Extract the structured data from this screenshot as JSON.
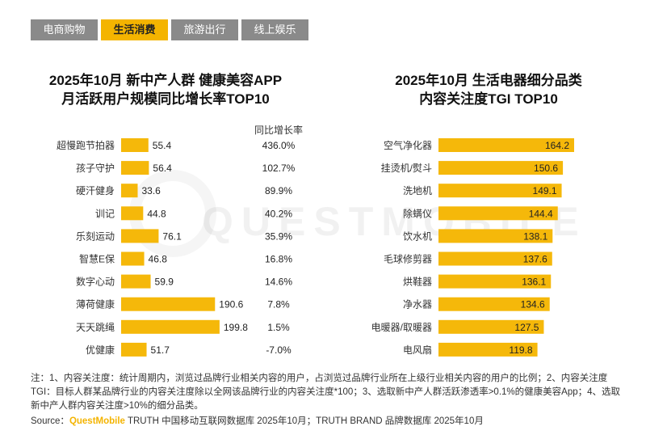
{
  "tabs": [
    {
      "label": "电商购物",
      "active": false
    },
    {
      "label": "生活消费",
      "active": true
    },
    {
      "label": "旅游出行",
      "active": false
    },
    {
      "label": "线上娱乐",
      "active": false
    }
  ],
  "watermark": "QUESTMOBILE",
  "charts": {
    "left": {
      "title_line1": "2025年10月 新中产人群 健康美容APP",
      "title_line2": "月活跃用户规模同比增长率TOP10",
      "yoy_header": "同比增长率"
    },
    "right": {
      "title_line1": "2025年10月 生活电器细分品类",
      "title_line2": "内容关注度TGI TOP10"
    }
  },
  "chart_data": [
    {
      "type": "bar",
      "orientation": "horizontal",
      "title": "2025年10月 新中产人群 健康美容APP 月活跃用户规模同比增长率TOP10",
      "categories": [
        "超慢跑节拍器",
        "孩子守护",
        "硬汗健身",
        "训记",
        "乐刻运动",
        "智慧E保",
        "数字心动",
        "薄荷健康",
        "天天跳绳",
        "优健康"
      ],
      "values": [
        55.4,
        56.4,
        33.6,
        44.8,
        76.1,
        46.8,
        59.9,
        190.6,
        199.8,
        51.7
      ],
      "value_labels": [
        "55.4",
        "56.4",
        "33.6",
        "44.8",
        "76.1",
        "46.8",
        "59.9",
        "190.6",
        "199.8",
        "51.7"
      ],
      "yoy_label": "同比增长率",
      "yoy_growth": [
        "436.0%",
        "102.7%",
        "89.9%",
        "40.2%",
        "35.9%",
        "16.8%",
        "14.6%",
        "7.8%",
        "1.5%",
        "-7.0%"
      ],
      "xlim": [
        0,
        200
      ],
      "color": "#f5b80a"
    },
    {
      "type": "bar",
      "orientation": "horizontal",
      "title": "2025年10月 生活电器细分品类 内容关注度TGI TOP10",
      "categories": [
        "空气净化器",
        "挂烫机/熨斗",
        "洗地机",
        "除螨仪",
        "饮水机",
        "毛球修剪器",
        "烘鞋器",
        "净水器",
        "电暖器/取暖器",
        "电风扇"
      ],
      "values": [
        164.2,
        150.6,
        149.1,
        144.4,
        138.1,
        137.6,
        136.1,
        134.6,
        127.5,
        119.8
      ],
      "value_labels": [
        "164.2",
        "150.6",
        "149.1",
        "144.4",
        "138.1",
        "137.6",
        "136.1",
        "134.6",
        "127.5",
        "119.8"
      ],
      "xlim": [
        0,
        164.2
      ],
      "color": "#f5b80a"
    }
  ],
  "notes": "注：1、内容关注度：统计周期内，浏览过品牌行业相关内容的用户，占浏览过品牌行业所在上级行业相关内容的用户的比例；2、内容关注度TGI：目标人群某品牌行业的内容关注度除以全网该品牌行业的内容关注度*100；3、选取新中产人群活跃渗透率>0.1%的健康美容App；4、选取新中产人群内容关注度>10%的细分品类。",
  "source": {
    "prefix": "Source：",
    "brand": "QuestMobile",
    "text": " TRUTH 中国移动互联网数据库 2025年10月；TRUTH BRAND 品牌数据库 2025年10月"
  }
}
